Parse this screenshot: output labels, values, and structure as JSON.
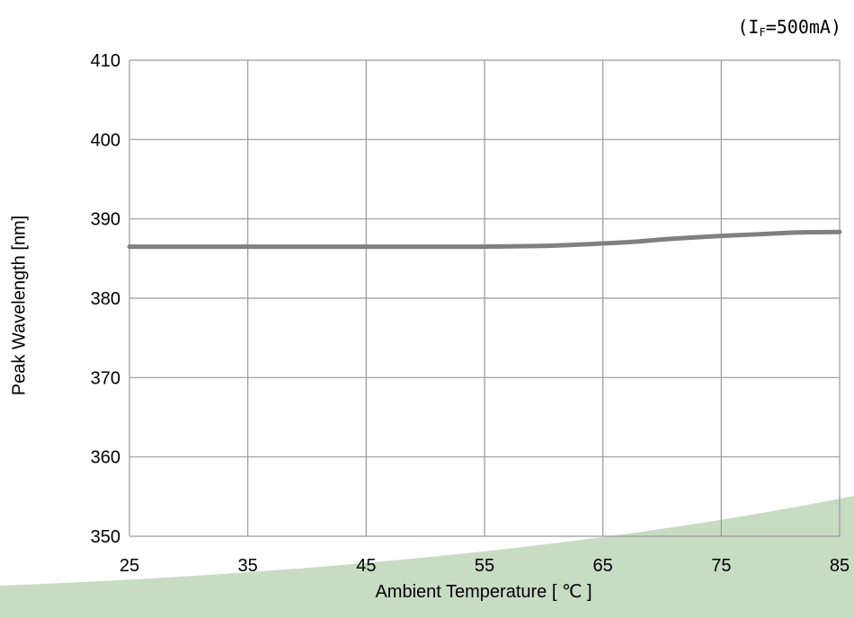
{
  "condition": {
    "prefix": "(I",
    "sub": "F",
    "suffix": "=500mA)"
  },
  "chart_data": {
    "type": "line",
    "title": "",
    "xlabel": "Ambient Temperature [ ℃ ]",
    "ylabel": "Peak Wavelength [nm]",
    "xlim": [
      25,
      85
    ],
    "ylim": [
      350,
      410
    ],
    "xticks": [
      25,
      35,
      45,
      55,
      65,
      75,
      85
    ],
    "yticks": [
      350,
      360,
      370,
      380,
      390,
      400,
      410
    ],
    "grid": true,
    "line_color": "#808080",
    "background_accent_color": "#c8dcc4",
    "series": [
      {
        "x": [
          25,
          30,
          35,
          40,
          45,
          50,
          55,
          58,
          60,
          62,
          65,
          68,
          70,
          72,
          75,
          78,
          80,
          82,
          85
        ],
        "y": [
          386.5,
          386.5,
          386.5,
          386.5,
          386.5,
          386.5,
          386.5,
          386.55,
          386.6,
          386.7,
          386.9,
          387.15,
          387.4,
          387.6,
          387.85,
          388.05,
          388.2,
          388.3,
          388.35
        ]
      }
    ]
  }
}
